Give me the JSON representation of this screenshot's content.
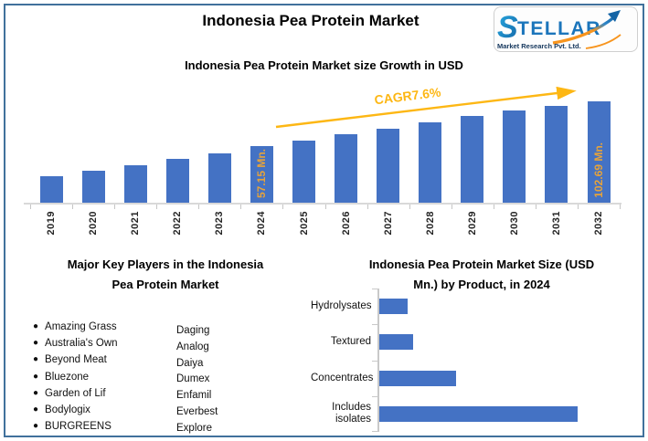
{
  "header": {
    "title": "Indonesia Pea Protein Market"
  },
  "logo": {
    "brand_s": "S",
    "brand_rest": "TELLAR",
    "tagline": "Market Research Pvt. Ltd.",
    "blue": "#1B75BB",
    "light_blue": "#29ABE2",
    "orange": "#F7941D",
    "navy": "#14365C"
  },
  "frame": {
    "border_color": "#41719C",
    "background": "#FFFFFF"
  },
  "key_players": {
    "title_lines": [
      "Major Key Players in the Indonesia",
      "Pea Protein Market"
    ],
    "bulleted_items": [
      "Amazing Grass",
      "Australia's Own",
      "Beyond Meat",
      "Bluezone",
      "Garden of Lif",
      "Bodylogix",
      "BURGREENS"
    ],
    "plain_items": [
      "Daging",
      "Analog",
      "Daiya",
      "Dumex",
      "Enfamil",
      "Everbest",
      "Explore"
    ]
  },
  "product_section": {
    "title_lines": [
      "Indonesia Pea Protein Market Size (USD",
      "Mn.) by Product, in 2024"
    ]
  },
  "chart_data": [
    {
      "type": "bar",
      "title": "Indonesia Pea Protein Market size Growth in USD",
      "unit": "USD Mn.",
      "categories": [
        "2019",
        "2020",
        "2021",
        "2022",
        "2023",
        "2024",
        "2025",
        "2026",
        "2027",
        "2028",
        "2029",
        "2030",
        "2031",
        "2032"
      ],
      "values": [
        27,
        32.5,
        38,
        44,
        50,
        57.15,
        63.3,
        69.1,
        75.2,
        81.5,
        87.5,
        93.5,
        98.5,
        102.69
      ],
      "data_labels": {
        "5": "57.15 Mn.",
        "13": "102.69 Mn."
      },
      "annotation": "CAGR7.6%",
      "bar_color": "#4472C4",
      "data_label_color": "#E7A33A",
      "annotation_color": "#FDB714",
      "ylim": [
        0,
        115
      ],
      "grid": false,
      "legend": false,
      "x_tick_rotation": 90
    },
    {
      "type": "bar",
      "orientation": "horizontal",
      "title": "Indonesia Pea Protein Market Size (USD Mn.) by Product, in 2024",
      "unit": "USD Mn.",
      "categories": [
        "Hydrolysates",
        "Textured",
        "Concentrates",
        "Includes isolates"
      ],
      "values": [
        4.8,
        5.7,
        13,
        33.6
      ],
      "bar_color": "#4472C4",
      "grid": false,
      "legend": false
    }
  ]
}
